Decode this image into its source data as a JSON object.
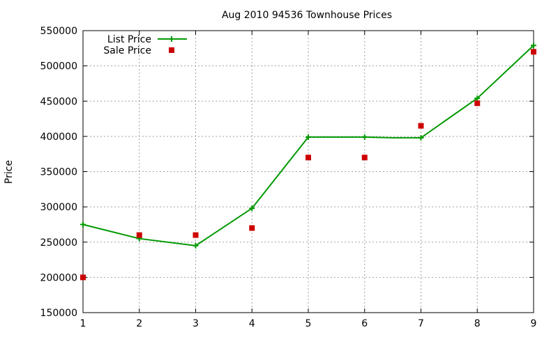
{
  "chart_data": {
    "type": "line",
    "title": "Aug 2010 94536 Townhouse Prices",
    "xlabel": "",
    "ylabel": "Price",
    "xlim": [
      1,
      9
    ],
    "ylim": [
      150000,
      550000
    ],
    "x_ticks": [
      "1",
      "2",
      "3",
      "4",
      "5",
      "6",
      "7",
      "8",
      "9"
    ],
    "y_ticks": [
      "150000",
      "200000",
      "250000",
      "300000",
      "350000",
      "400000",
      "450000",
      "500000",
      "550000"
    ],
    "grid": true,
    "legend_position": "top-left",
    "series": [
      {
        "name": "List Price",
        "style": "linespoints",
        "marker": "plus",
        "color": "#009900",
        "x": [
          1,
          2,
          3,
          4,
          5,
          6,
          6.5,
          7,
          8,
          9
        ],
        "y": [
          275000,
          255000,
          245000,
          298000,
          399000,
          399000,
          398000,
          398000,
          454000,
          529000
        ],
        "marked": [
          true,
          true,
          true,
          true,
          true,
          true,
          false,
          true,
          true,
          true
        ]
      },
      {
        "name": "Sale Price",
        "style": "points",
        "marker": "square",
        "color": "#cc0000",
        "x": [
          1,
          2,
          3,
          4,
          5,
          6,
          7,
          8,
          9
        ],
        "y": [
          200000,
          260000,
          260000,
          270000,
          370000,
          370000,
          415000,
          447000,
          520000
        ]
      }
    ]
  }
}
